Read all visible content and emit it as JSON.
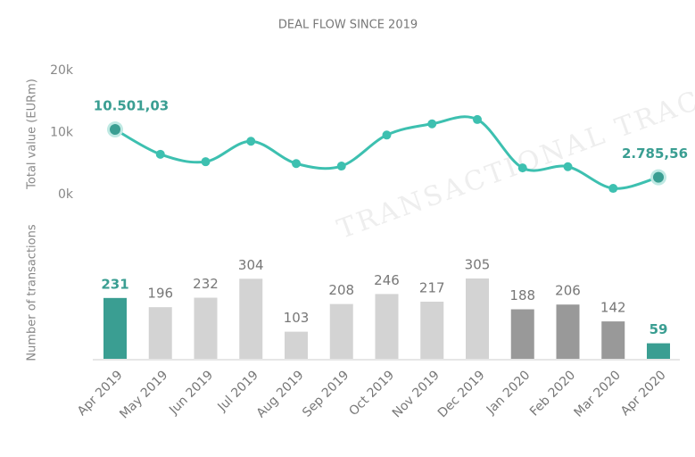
{
  "watermark": "Transactional Track Record",
  "chart_data": [
    {
      "type": "line",
      "title": "DEAL FLOW SINCE 2019",
      "y_label": "Total value (EURm)",
      "categories": [
        "Apr 2019",
        "May 2019",
        "Jun 2019",
        "Jul 2019",
        "Aug 2019",
        "Sep 2019",
        "Oct 2019",
        "Nov 2019",
        "Dec 2019",
        "Jan 2020",
        "Feb 2020",
        "Mar 2020",
        "Apr 2020"
      ],
      "values": [
        10501.03,
        6500,
        5300,
        8600,
        5000,
        4600,
        9600,
        11400,
        12100,
        4300,
        4500,
        1000,
        2785.56
      ],
      "value_labels": [
        "10.501,03",
        null,
        null,
        null,
        null,
        null,
        null,
        null,
        null,
        null,
        null,
        null,
        "2.785,56"
      ],
      "color": "#3dc0b0",
      "label_color": "#3a9e92",
      "ylim": [
        0,
        20000
      ],
      "yticks": [
        {
          "value": 0,
          "label": "0k"
        },
        {
          "value": 10000,
          "label": "10k"
        },
        {
          "value": 20000,
          "label": "20k"
        }
      ]
    },
    {
      "type": "bar",
      "y_label": "Number of transactions",
      "categories": [
        "Apr 2019",
        "May 2019",
        "Jun 2019",
        "Jul 2019",
        "Aug 2019",
        "Sep 2019",
        "Oct 2019",
        "Nov 2019",
        "Dec 2019",
        "Jan 2020",
        "Feb 2020",
        "Mar 2020",
        "Apr 2020"
      ],
      "values": [
        231,
        196,
        232,
        304,
        103,
        208,
        246,
        217,
        305,
        188,
        206,
        142,
        59
      ],
      "colors": [
        "#3a9e92",
        "#d3d3d3",
        "#d3d3d3",
        "#d3d3d3",
        "#d3d3d3",
        "#d3d3d3",
        "#d3d3d3",
        "#d3d3d3",
        "#d3d3d3",
        "#999999",
        "#999999",
        "#999999",
        "#3a9e92"
      ],
      "ylim": [
        0,
        305
      ]
    }
  ]
}
